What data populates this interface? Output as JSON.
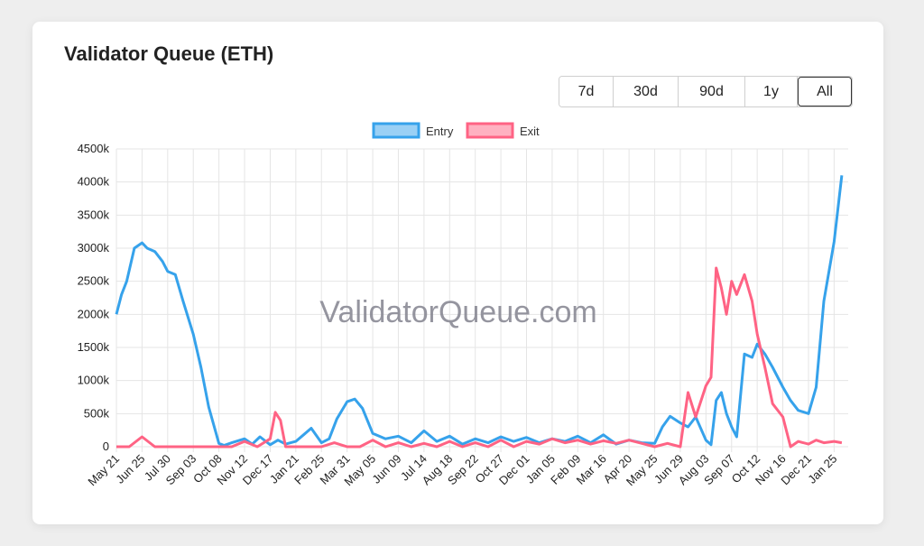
{
  "card": {
    "title": "Validator Queue (ETH)"
  },
  "range_buttons": [
    {
      "label": "7d",
      "active": false
    },
    {
      "label": "30d",
      "active": false
    },
    {
      "label": "90d",
      "active": false
    },
    {
      "label": "1y",
      "active": false
    },
    {
      "label": "All",
      "active": true
    }
  ],
  "watermark": "ValidatorQueue.com",
  "colors": {
    "entry": "#36a2eb",
    "entry_fill": "#9ad0f5",
    "exit": "#ff6384",
    "exit_fill": "#ffb1c1",
    "grid": "#e5e5e5"
  },
  "chart_data": {
    "type": "line",
    "title": "",
    "xlabel": "",
    "ylabel": "",
    "ylim": [
      0,
      4500
    ],
    "y_ticks": [
      "0",
      "500k",
      "1000k",
      "1500k",
      "2000k",
      "2500k",
      "3000k",
      "3500k",
      "4000k",
      "4500k"
    ],
    "x_tick_labels": [
      "May 21",
      "Jun 25",
      "Jul 30",
      "Sep 03",
      "Oct 08",
      "Nov 12",
      "Dec 17",
      "Jan 21",
      "Feb 25",
      "Mar 31",
      "May 05",
      "Jun 09",
      "Jul 14",
      "Aug 18",
      "Sep 22",
      "Oct 27",
      "Dec 01",
      "Jan 05",
      "Feb 09",
      "Mar 16",
      "Apr 20",
      "May 25",
      "Jun 29",
      "Aug 03",
      "Sep 07",
      "Oct 12",
      "Nov 16",
      "Dec 21",
      "Jan 25"
    ],
    "legend": {
      "position": "top",
      "entries": [
        "Entry",
        "Exit"
      ]
    },
    "grid": true,
    "series": [
      {
        "name": "Entry",
        "x": [
          0,
          0.2,
          0.4,
          0.7,
          1,
          1.2,
          1.5,
          1.8,
          2,
          2.3,
          2.6,
          3,
          3.3,
          3.6,
          4,
          4.2,
          4.5,
          5,
          5.3,
          5.6,
          6,
          6.3,
          6.6,
          7,
          7.3,
          7.6,
          8,
          8.3,
          8.6,
          9,
          9.3,
          9.6,
          10,
          10.5,
          11,
          11.5,
          12,
          12.5,
          13,
          13.5,
          14,
          14.5,
          15,
          15.5,
          16,
          16.5,
          17,
          17.5,
          18,
          18.5,
          19,
          19.5,
          20,
          20.5,
          21,
          21.3,
          21.6,
          22,
          22.3,
          22.6,
          23,
          23.2,
          23.4,
          23.6,
          23.8,
          24,
          24.2,
          24.5,
          24.8,
          25,
          25.3,
          25.6,
          26,
          26.3,
          26.6,
          27,
          27.3,
          27.6,
          28,
          28.3
        ],
        "values": [
          2000,
          2300,
          2500,
          3000,
          3080,
          3000,
          2950,
          2800,
          2650,
          2600,
          2200,
          1700,
          1200,
          600,
          50,
          20,
          60,
          120,
          40,
          150,
          30,
          100,
          40,
          80,
          180,
          280,
          60,
          120,
          420,
          680,
          720,
          580,
          200,
          120,
          160,
          60,
          240,
          80,
          160,
          40,
          120,
          60,
          150,
          80,
          140,
          60,
          120,
          80,
          160,
          60,
          180,
          40,
          100,
          60,
          50,
          300,
          460,
          360,
          300,
          450,
          100,
          30,
          700,
          820,
          500,
          300,
          150,
          1400,
          1350,
          1550,
          1400,
          1200,
          900,
          700,
          550,
          500,
          900,
          2200,
          3100,
          4100
        ]
      },
      {
        "name": "Exit",
        "x": [
          0,
          0.5,
          1,
          1.5,
          2,
          2.5,
          3,
          3.5,
          4,
          4.5,
          5,
          5.5,
          6,
          6.2,
          6.4,
          6.6,
          7,
          7.5,
          8,
          8.5,
          9,
          9.5,
          10,
          10.5,
          11,
          11.5,
          12,
          12.5,
          13,
          13.5,
          14,
          14.5,
          15,
          15.5,
          16,
          16.5,
          17,
          17.5,
          18,
          18.5,
          19,
          19.5,
          20,
          20.5,
          21,
          21.5,
          22,
          22.3,
          22.6,
          23,
          23.2,
          23.4,
          23.6,
          23.8,
          24,
          24.2,
          24.5,
          24.8,
          25,
          25.3,
          25.6,
          26,
          26.3,
          26.6,
          27,
          27.3,
          27.6,
          28,
          28.3
        ],
        "values": [
          0,
          0,
          150,
          0,
          0,
          0,
          0,
          0,
          0,
          0,
          80,
          0,
          120,
          520,
          400,
          0,
          0,
          0,
          0,
          60,
          0,
          0,
          100,
          0,
          60,
          0,
          50,
          0,
          80,
          0,
          60,
          0,
          100,
          0,
          80,
          40,
          120,
          60,
          100,
          40,
          90,
          50,
          100,
          50,
          0,
          50,
          0,
          820,
          450,
          920,
          1050,
          2700,
          2400,
          2000,
          2500,
          2300,
          2600,
          2200,
          1700,
          1200,
          650,
          450,
          0,
          80,
          40,
          100,
          60,
          80,
          60
        ]
      }
    ]
  }
}
